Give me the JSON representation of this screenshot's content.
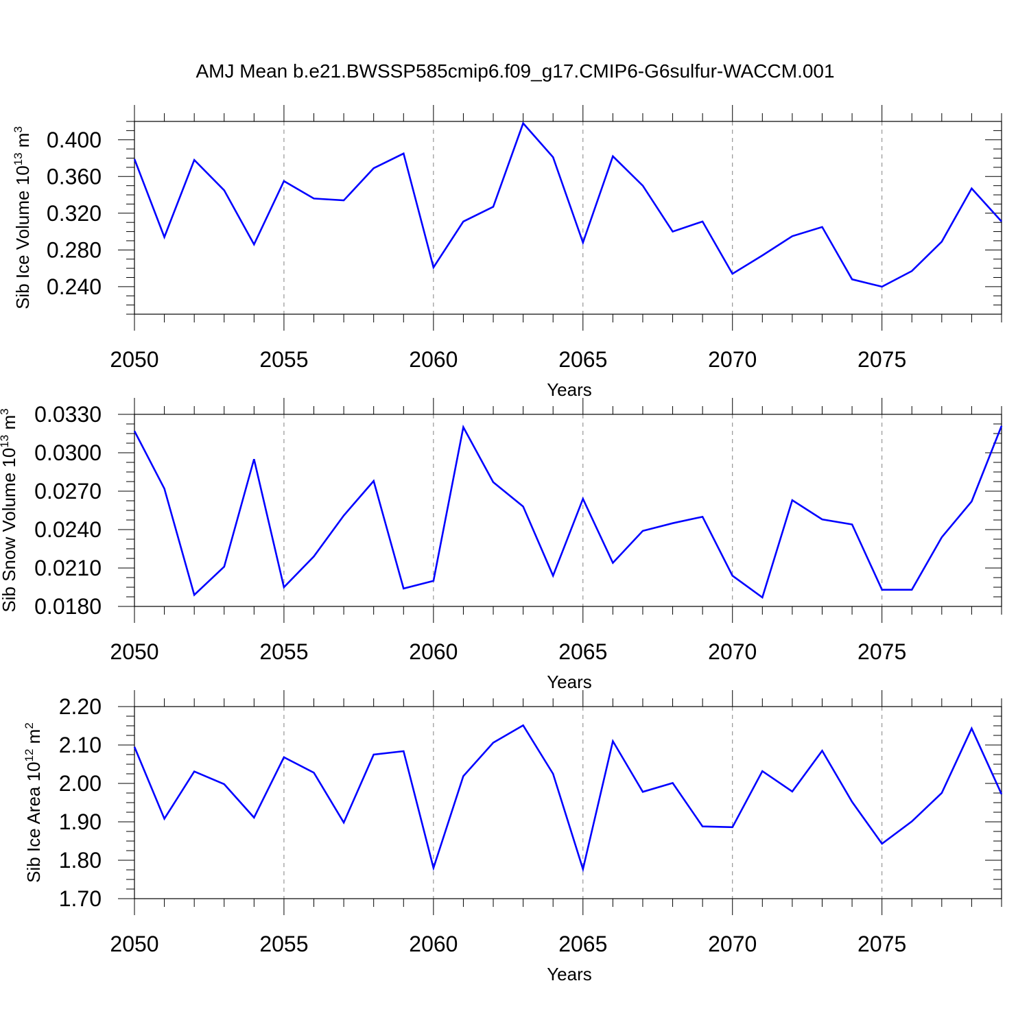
{
  "title": "AMJ Mean b.e21.BWSSP585cmip6.f09_g17.CMIP6-G6sulfur-WACCM.001",
  "colors": {
    "line": "#0000ff",
    "axis": "#000000",
    "grid": "#808080"
  },
  "chart_data": [
    {
      "type": "line",
      "xlabel": "Years",
      "ylabel": "Sib Ice Volume 10",
      "ylabel_exp": "13",
      "ylabel_unit": "m",
      "ylabel_unit_exp": "3",
      "xlim": [
        2050,
        2079
      ],
      "ylim": [
        0.21,
        0.42
      ],
      "xticks": [
        "2050",
        "2055",
        "2060",
        "2065",
        "2070",
        "2075"
      ],
      "yticks": [
        "0.240",
        "0.280",
        "0.320",
        "0.360",
        "0.400"
      ],
      "grid": "vertical dashed at major x ticks",
      "series": [
        {
          "x": [
            2050,
            2051,
            2052,
            2053,
            2054,
            2055,
            2056,
            2057,
            2058,
            2059,
            2060,
            2061,
            2062,
            2063,
            2064,
            2065,
            2066,
            2067,
            2068,
            2069,
            2070,
            2071,
            2072,
            2073,
            2074,
            2075,
            2076,
            2077,
            2078,
            2079
          ],
          "values": [
            0.379,
            0.294,
            0.378,
            0.345,
            0.286,
            0.355,
            0.336,
            0.334,
            0.369,
            0.385,
            0.261,
            0.311,
            0.327,
            0.418,
            0.381,
            0.288,
            0.382,
            0.35,
            0.3,
            0.311,
            0.254,
            0.274,
            0.295,
            0.305,
            0.248,
            0.24,
            0.257,
            0.289,
            0.347,
            0.311
          ]
        }
      ]
    },
    {
      "type": "line",
      "xlabel": "Years",
      "ylabel": "Sib Snow Volume 10",
      "ylabel_exp": "13",
      "ylabel_unit": "m",
      "ylabel_unit_exp": "3",
      "xlim": [
        2050,
        2079
      ],
      "ylim": [
        0.018,
        0.033
      ],
      "xticks": [
        "2050",
        "2055",
        "2060",
        "2065",
        "2070",
        "2075"
      ],
      "yticks": [
        "0.0180",
        "0.0210",
        "0.0240",
        "0.0270",
        "0.0300",
        "0.0330"
      ],
      "grid": "vertical dashed at major x ticks",
      "series": [
        {
          "x": [
            2050,
            2051,
            2052,
            2053,
            2054,
            2055,
            2056,
            2057,
            2058,
            2059,
            2060,
            2061,
            2062,
            2063,
            2064,
            2065,
            2066,
            2067,
            2068,
            2069,
            2070,
            2071,
            2072,
            2073,
            2074,
            2075,
            2076,
            2077,
            2078,
            2079
          ],
          "values": [
            0.0317,
            0.0272,
            0.0189,
            0.0211,
            0.0295,
            0.0195,
            0.0219,
            0.0251,
            0.0278,
            0.0194,
            0.02,
            0.032,
            0.0277,
            0.0258,
            0.0204,
            0.0264,
            0.0214,
            0.0239,
            0.0245,
            0.025,
            0.0204,
            0.0187,
            0.0263,
            0.0248,
            0.0244,
            0.0193,
            0.0193,
            0.0234,
            0.0262,
            0.0321
          ]
        }
      ]
    },
    {
      "type": "line",
      "xlabel": "Years",
      "ylabel": "Sib Ice Area 10",
      "ylabel_exp": "12",
      "ylabel_unit": "m",
      "ylabel_unit_exp": "2",
      "xlim": [
        2050,
        2079
      ],
      "ylim": [
        1.7,
        2.2
      ],
      "xticks": [
        "2050",
        "2055",
        "2060",
        "2065",
        "2070",
        "2075"
      ],
      "yticks": [
        "1.70",
        "1.80",
        "1.90",
        "2.00",
        "2.10",
        "2.20"
      ],
      "grid": "vertical dashed at major x ticks",
      "series": [
        {
          "x": [
            2050,
            2051,
            2052,
            2053,
            2054,
            2055,
            2056,
            2057,
            2058,
            2059,
            2060,
            2061,
            2062,
            2063,
            2064,
            2065,
            2066,
            2067,
            2068,
            2069,
            2070,
            2071,
            2072,
            2073,
            2074,
            2075,
            2076,
            2077,
            2078,
            2079
          ],
          "values": [
            2.095,
            1.908,
            2.031,
            1.998,
            1.911,
            2.068,
            2.028,
            1.898,
            2.075,
            2.084,
            1.78,
            2.019,
            2.106,
            2.151,
            2.025,
            1.777,
            2.11,
            1.978,
            2.001,
            1.888,
            1.886,
            2.032,
            1.979,
            2.085,
            1.952,
            1.843,
            1.901,
            1.975,
            2.143,
            1.972
          ]
        }
      ]
    }
  ]
}
